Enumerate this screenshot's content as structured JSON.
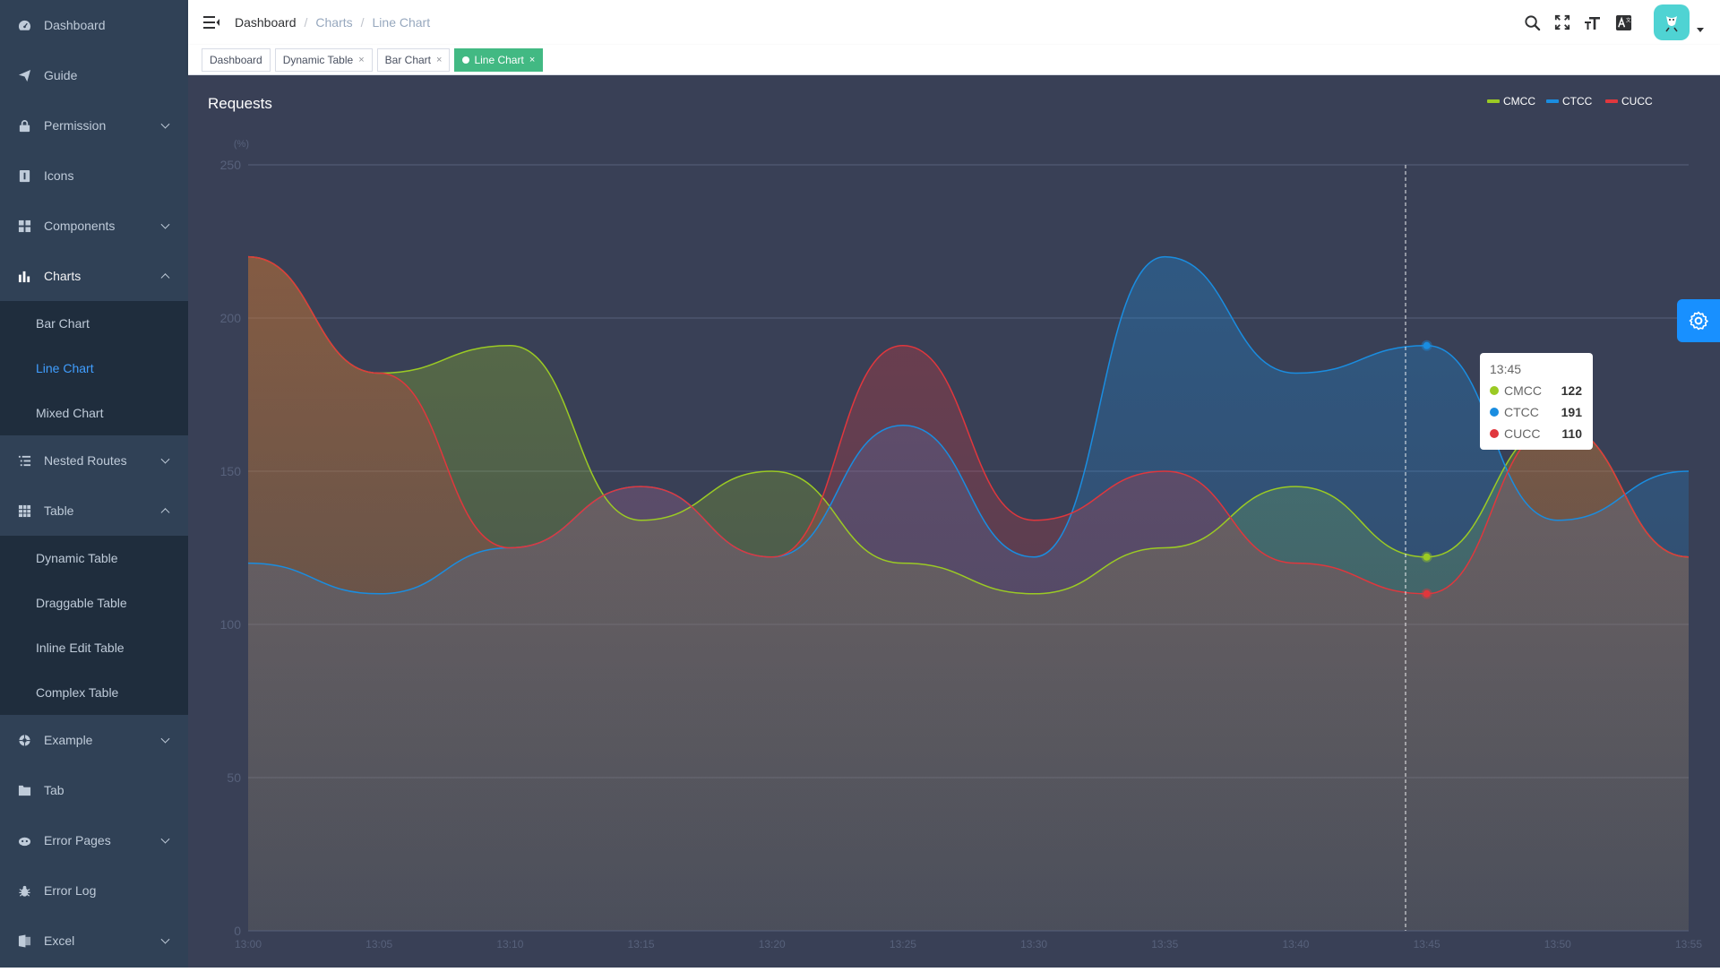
{
  "sidebar": {
    "items": [
      {
        "label": "Dashboard",
        "icon": "dashboard-icon",
        "name": "dashboard",
        "chevron": "none"
      },
      {
        "label": "Guide",
        "icon": "guide-icon",
        "name": "guide",
        "chevron": "none"
      },
      {
        "label": "Permission",
        "icon": "lock-icon",
        "name": "permission",
        "chevron": "down"
      },
      {
        "label": "Icons",
        "icon": "icons-icon",
        "name": "icons",
        "chevron": "none"
      },
      {
        "label": "Components",
        "icon": "components-icon",
        "name": "components",
        "chevron": "down"
      },
      {
        "label": "Charts",
        "icon": "chart-icon",
        "name": "charts",
        "chevron": "up",
        "children": [
          "Bar Chart",
          "Line Chart",
          "Mixed Chart"
        ],
        "active_child": "Line Chart"
      },
      {
        "label": "Nested Routes",
        "icon": "nested-icon",
        "name": "nested-routes",
        "chevron": "down"
      },
      {
        "label": "Table",
        "icon": "table-icon",
        "name": "table",
        "chevron": "up",
        "children": [
          "Dynamic Table",
          "Draggable Table",
          "Inline Edit Table",
          "Complex Table"
        ]
      },
      {
        "label": "Example",
        "icon": "example-icon",
        "name": "example",
        "chevron": "down"
      },
      {
        "label": "Tab",
        "icon": "tab-icon",
        "name": "tab",
        "chevron": "none"
      },
      {
        "label": "Error Pages",
        "icon": "error-pages-icon",
        "name": "error-pages",
        "chevron": "down"
      },
      {
        "label": "Error Log",
        "icon": "bug-icon",
        "name": "error-log",
        "chevron": "none"
      },
      {
        "label": "Excel",
        "icon": "excel-icon",
        "name": "excel",
        "chevron": "down"
      }
    ]
  },
  "navbar": {
    "breadcrumb": [
      "Dashboard",
      "Charts",
      "Line Chart"
    ],
    "breadcrumb_sep": "/"
  },
  "tags": [
    {
      "label": "Dashboard",
      "active": false,
      "closable": false
    },
    {
      "label": "Dynamic Table",
      "active": false,
      "closable": true
    },
    {
      "label": "Bar Chart",
      "active": false,
      "closable": true
    },
    {
      "label": "Line Chart",
      "active": true,
      "closable": true
    }
  ],
  "colors": {
    "sidebar_bg": "#304156",
    "main_bg": "#394056",
    "accent": "#409eff",
    "tag_active": "#42b983",
    "cmcc": "#9bca24",
    "ctcc": "#1a8de0",
    "cucc": "#e0373d"
  },
  "chart_data": {
    "type": "area",
    "title": "Requests",
    "ylabel": "(%)",
    "x": [
      "13:00",
      "13:05",
      "13:10",
      "13:15",
      "13:20",
      "13:25",
      "13:30",
      "13:35",
      "13:40",
      "13:45",
      "13:50",
      "13:55"
    ],
    "ylim": [
      0,
      250
    ],
    "yticks": [
      0,
      50,
      100,
      150,
      200,
      250
    ],
    "grid": true,
    "smooth": true,
    "legend_position": "top-right",
    "series": [
      {
        "name": "CMCC",
        "color": "#9bca24",
        "values": [
          220,
          182,
          191,
          134,
          150,
          120,
          110,
          125,
          145,
          122,
          165,
          122
        ]
      },
      {
        "name": "CTCC",
        "color": "#1a8de0",
        "values": [
          120,
          110,
          125,
          145,
          122,
          165,
          122,
          220,
          182,
          191,
          134,
          150
        ]
      },
      {
        "name": "CUCC",
        "color": "#e0373d",
        "values": [
          220,
          182,
          125,
          145,
          122,
          191,
          134,
          150,
          120,
          110,
          165,
          122
        ]
      }
    ],
    "tooltip": {
      "title": "13:45",
      "index": 9,
      "rows": [
        {
          "name": "CMCC",
          "value": "122",
          "color": "#9bca24"
        },
        {
          "name": "CTCC",
          "value": "191",
          "color": "#1a8de0"
        },
        {
          "name": "CUCC",
          "value": "110",
          "color": "#e0373d"
        }
      ]
    }
  }
}
